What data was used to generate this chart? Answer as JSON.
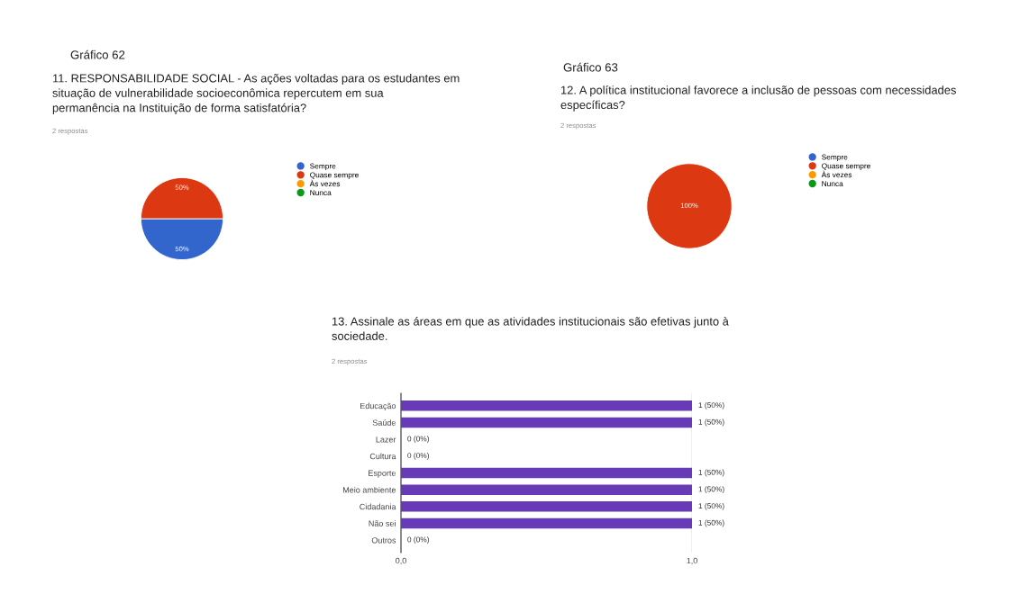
{
  "chart_data": [
    {
      "type": "pie",
      "title": "11. RESPONSABILIDADE SOCIAL - As ações voltadas para os estudantes em\nsituação de vulnerabilidade socioeconômica repercutem em sua\npermanência na Instituição de forma satisfatória?",
      "subtitle": "2 respostas",
      "annotations": [
        "Gráfico 62"
      ],
      "categories": [
        "Sempre",
        "Quase sempre",
        "Às vezes",
        "Nunca"
      ],
      "values": [
        50,
        50,
        0,
        0
      ],
      "colors": [
        "#3366cc",
        "#dc3912",
        "#ff9900",
        "#109618"
      ],
      "value_labels": [
        "50%",
        "50%",
        null,
        null
      ],
      "legend": "right"
    },
    {
      "type": "pie",
      "title": "12. A política institucional favorece a inclusão de pessoas com necessidades\nespecíficas?",
      "subtitle": "2 respostas",
      "annotations": [
        "Gráfico 63"
      ],
      "categories": [
        "Sempre",
        "Quase sempre",
        "Às vezes",
        "Nunca"
      ],
      "values": [
        0,
        100,
        0,
        0
      ],
      "colors": [
        "#3366cc",
        "#dc3912",
        "#ff9900",
        "#109618"
      ],
      "value_labels": [
        null,
        "100%",
        null,
        null
      ],
      "legend": "right"
    },
    {
      "type": "bar",
      "orientation": "horizontal",
      "title": "13. Assinale as áreas em que as atividades institucionais são efetivas junto à\nsociedade.",
      "subtitle": "2 respostas",
      "categories": [
        "Educação",
        "Saúde",
        "Lazer",
        "Cultura",
        "Esporte",
        "Meio ambiente",
        "Cidadania",
        "Não sei",
        "Outros"
      ],
      "values": [
        1,
        1,
        0,
        0,
        1,
        1,
        1,
        1,
        0
      ],
      "color": "#673ab7",
      "value_labels": [
        "1 (50%)",
        "1 (50%)",
        "0 (0%)",
        "0 (0%)",
        "1 (50%)",
        "1 (50%)",
        "1 (50%)",
        "1 (50%)",
        "0 (0%)"
      ],
      "xlim": [
        0,
        1
      ],
      "xticks": [
        {
          "value": 0,
          "label": "0,0"
        },
        {
          "value": 1,
          "label": "1,0"
        }
      ],
      "grid": "x"
    }
  ]
}
